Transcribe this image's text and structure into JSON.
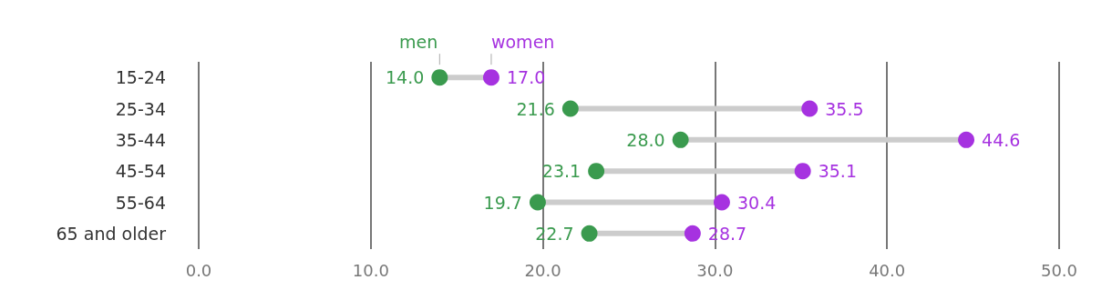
{
  "chart_data": {
    "type": "scatter",
    "orientation": "horizontal",
    "categories": [
      "15-24",
      "25-34",
      "35-44",
      "45-54",
      "55-64",
      "65 and older"
    ],
    "series": [
      {
        "name": "men",
        "color": "#3a9a4e",
        "values": [
          14.0,
          21.6,
          28.0,
          23.1,
          19.7,
          22.7
        ],
        "value_labels": [
          "14.0",
          "21.6",
          "28.0",
          "23.1",
          "19.7",
          "22.7"
        ]
      },
      {
        "name": "women",
        "color": "#a632e0",
        "values": [
          17.0,
          35.5,
          44.6,
          35.1,
          30.4,
          28.7
        ],
        "value_labels": [
          "17.0",
          "35.5",
          "44.6",
          "35.1",
          "30.4",
          "28.7"
        ]
      }
    ],
    "xlim": [
      0,
      50
    ],
    "xticks": [
      {
        "value": 0,
        "label": "0.0"
      },
      {
        "value": 10,
        "label": "10.0"
      },
      {
        "value": 20,
        "label": "20.0"
      },
      {
        "value": 30,
        "label": "30.0"
      },
      {
        "value": 40,
        "label": "40.0"
      },
      {
        "value": 50,
        "label": "50.0"
      }
    ],
    "grid": "x",
    "legend": false,
    "marker": "circle"
  }
}
